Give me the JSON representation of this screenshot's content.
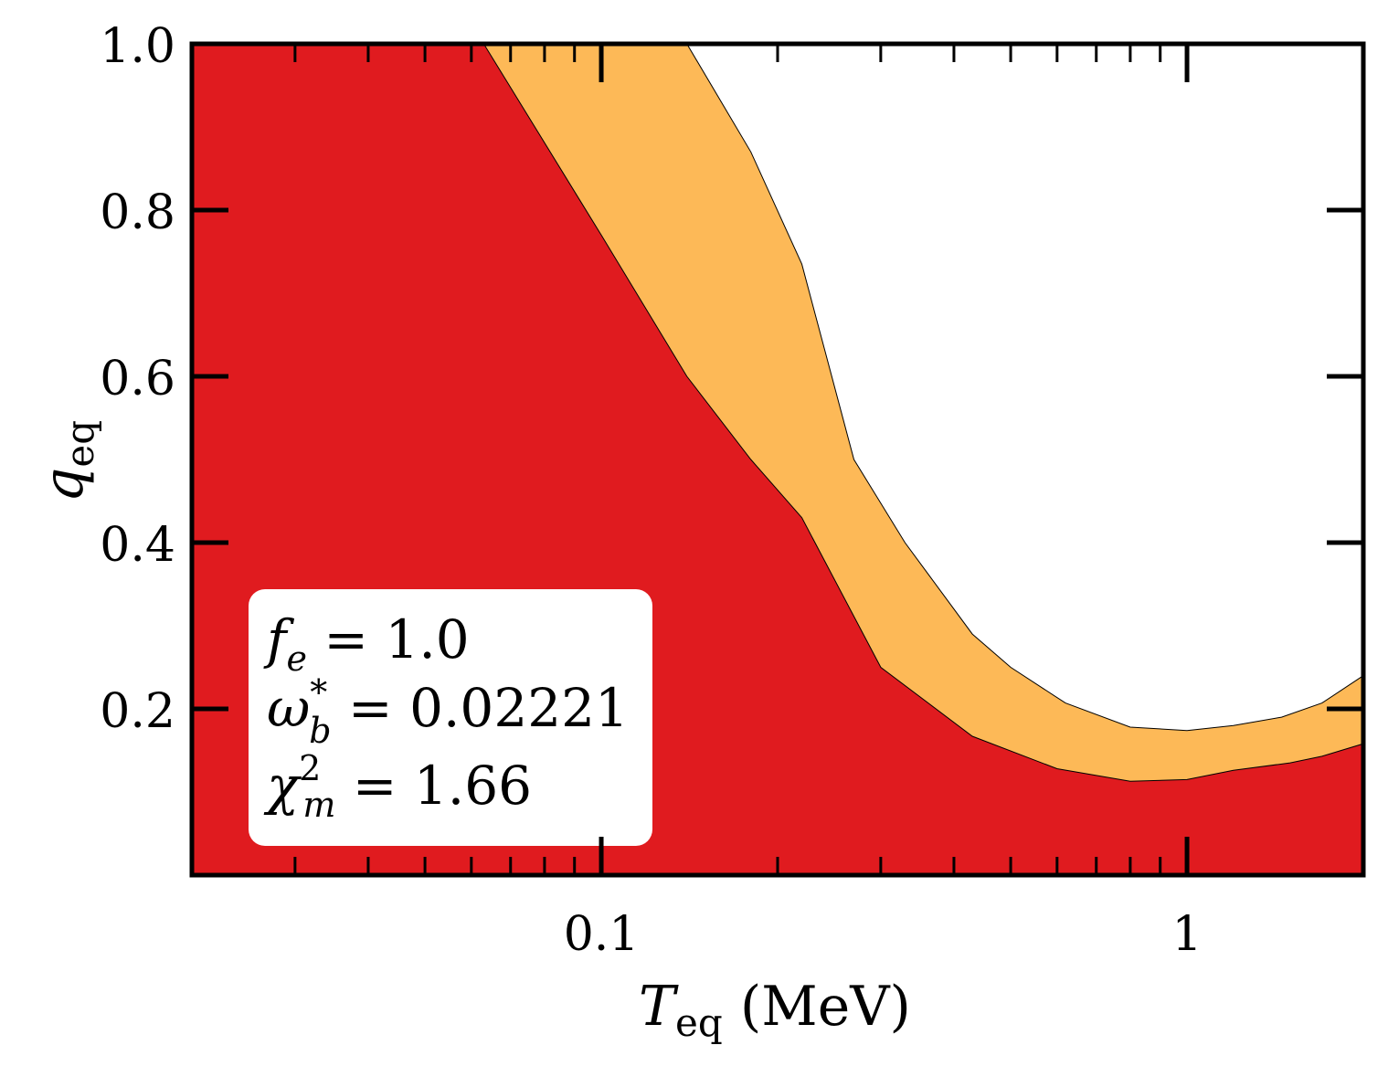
{
  "chart_data": {
    "type": "area",
    "xscale": "log",
    "xlim": [
      0.02,
      2.0
    ],
    "ylim": [
      0.0,
      1.0
    ],
    "xlabel": {
      "main": "T",
      "sub": "eq",
      "rest": " (MeV)"
    },
    "ylabel": {
      "main": "q",
      "sub": "eq"
    },
    "xticks": [
      {
        "value": 0.1,
        "label": "0.1"
      },
      {
        "value": 1,
        "label": "1"
      }
    ],
    "yticks": [
      {
        "value": 0.2,
        "label": "0.2"
      },
      {
        "value": 0.4,
        "label": "0.4"
      },
      {
        "value": 0.6,
        "label": "0.6"
      },
      {
        "value": 0.8,
        "label": "0.8"
      },
      {
        "value": 1.0,
        "label": "1.0"
      }
    ],
    "series": [
      {
        "color": "#fdb957",
        "boundary": [
          [
            0.02,
            1.0
          ],
          [
            0.14,
            1.0
          ],
          [
            0.18,
            0.87
          ],
          [
            0.22,
            0.735
          ],
          [
            0.27,
            0.5
          ],
          [
            0.33,
            0.4
          ],
          [
            0.43,
            0.29
          ],
          [
            0.5,
            0.25
          ],
          [
            0.62,
            0.207
          ],
          [
            0.8,
            0.178
          ],
          [
            1.0,
            0.174
          ],
          [
            1.2,
            0.18
          ],
          [
            1.45,
            0.19
          ],
          [
            1.7,
            0.207
          ],
          [
            2.0,
            0.24
          ]
        ]
      },
      {
        "color": "#e01b1f",
        "boundary": [
          [
            0.02,
            1.0
          ],
          [
            0.063,
            1.0
          ],
          [
            0.1,
            0.77
          ],
          [
            0.14,
            0.6
          ],
          [
            0.18,
            0.5
          ],
          [
            0.22,
            0.43
          ],
          [
            0.3,
            0.25
          ],
          [
            0.43,
            0.167
          ],
          [
            0.6,
            0.128
          ],
          [
            0.8,
            0.113
          ],
          [
            1.0,
            0.115
          ],
          [
            1.2,
            0.126
          ],
          [
            1.5,
            0.135
          ],
          [
            1.7,
            0.143
          ],
          [
            2.0,
            0.158
          ]
        ]
      }
    ],
    "annotation": {
      "lines": [
        {
          "main": "f",
          "sub": "e",
          "sup": "",
          "rest": " = 1.0"
        },
        {
          "main": "ω",
          "sub": "b",
          "sup": "*",
          "rest": " = 0.02221"
        },
        {
          "main": "χ",
          "sub": "m",
          "sup": "2",
          "rest": " = 1.66"
        }
      ]
    }
  }
}
